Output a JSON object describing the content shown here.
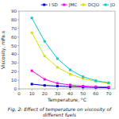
{
  "chart_data": {
    "type": "line",
    "title": "Fig. 2: Effect of temperature on viscosity of different fuels",
    "xlabel": "Temperature, °C",
    "ylabel": "Viscosity, mPa.s",
    "x": [
      10,
      20,
      30,
      40,
      50,
      60,
      70
    ],
    "xlim": [
      0,
      75
    ],
    "ylim": [
      0,
      90
    ],
    "xticks": [
      0,
      10,
      20,
      30,
      40,
      50,
      60,
      70
    ],
    "yticks": [
      0,
      10,
      20,
      30,
      40,
      50,
      60,
      70,
      80,
      90
    ],
    "grid": false,
    "legend": "upper right",
    "series": [
      {
        "name": "I SD",
        "color": "#0000CC",
        "marker": "square",
        "values": [
          5.5,
          4.0,
          3.2,
          2.5,
          2.0,
          1.6,
          1.3
        ]
      },
      {
        "name": "JMC",
        "color": "#FF00FF",
        "marker": "square",
        "values": [
          21.0,
          11.0,
          6.5,
          4.5,
          3.2,
          2.5,
          2.0
        ]
      },
      {
        "name": "DCJO",
        "color": "#DDDD00",
        "marker": "square",
        "values": [
          65.0,
          38.0,
          25.0,
          17.0,
          12.0,
          8.5,
          6.5
        ]
      },
      {
        "name": "JO",
        "color": "#00CCCC",
        "marker": "square",
        "values": [
          82.0,
          55.0,
          35.0,
          22.0,
          14.0,
          9.5,
          7.0
        ]
      }
    ]
  }
}
